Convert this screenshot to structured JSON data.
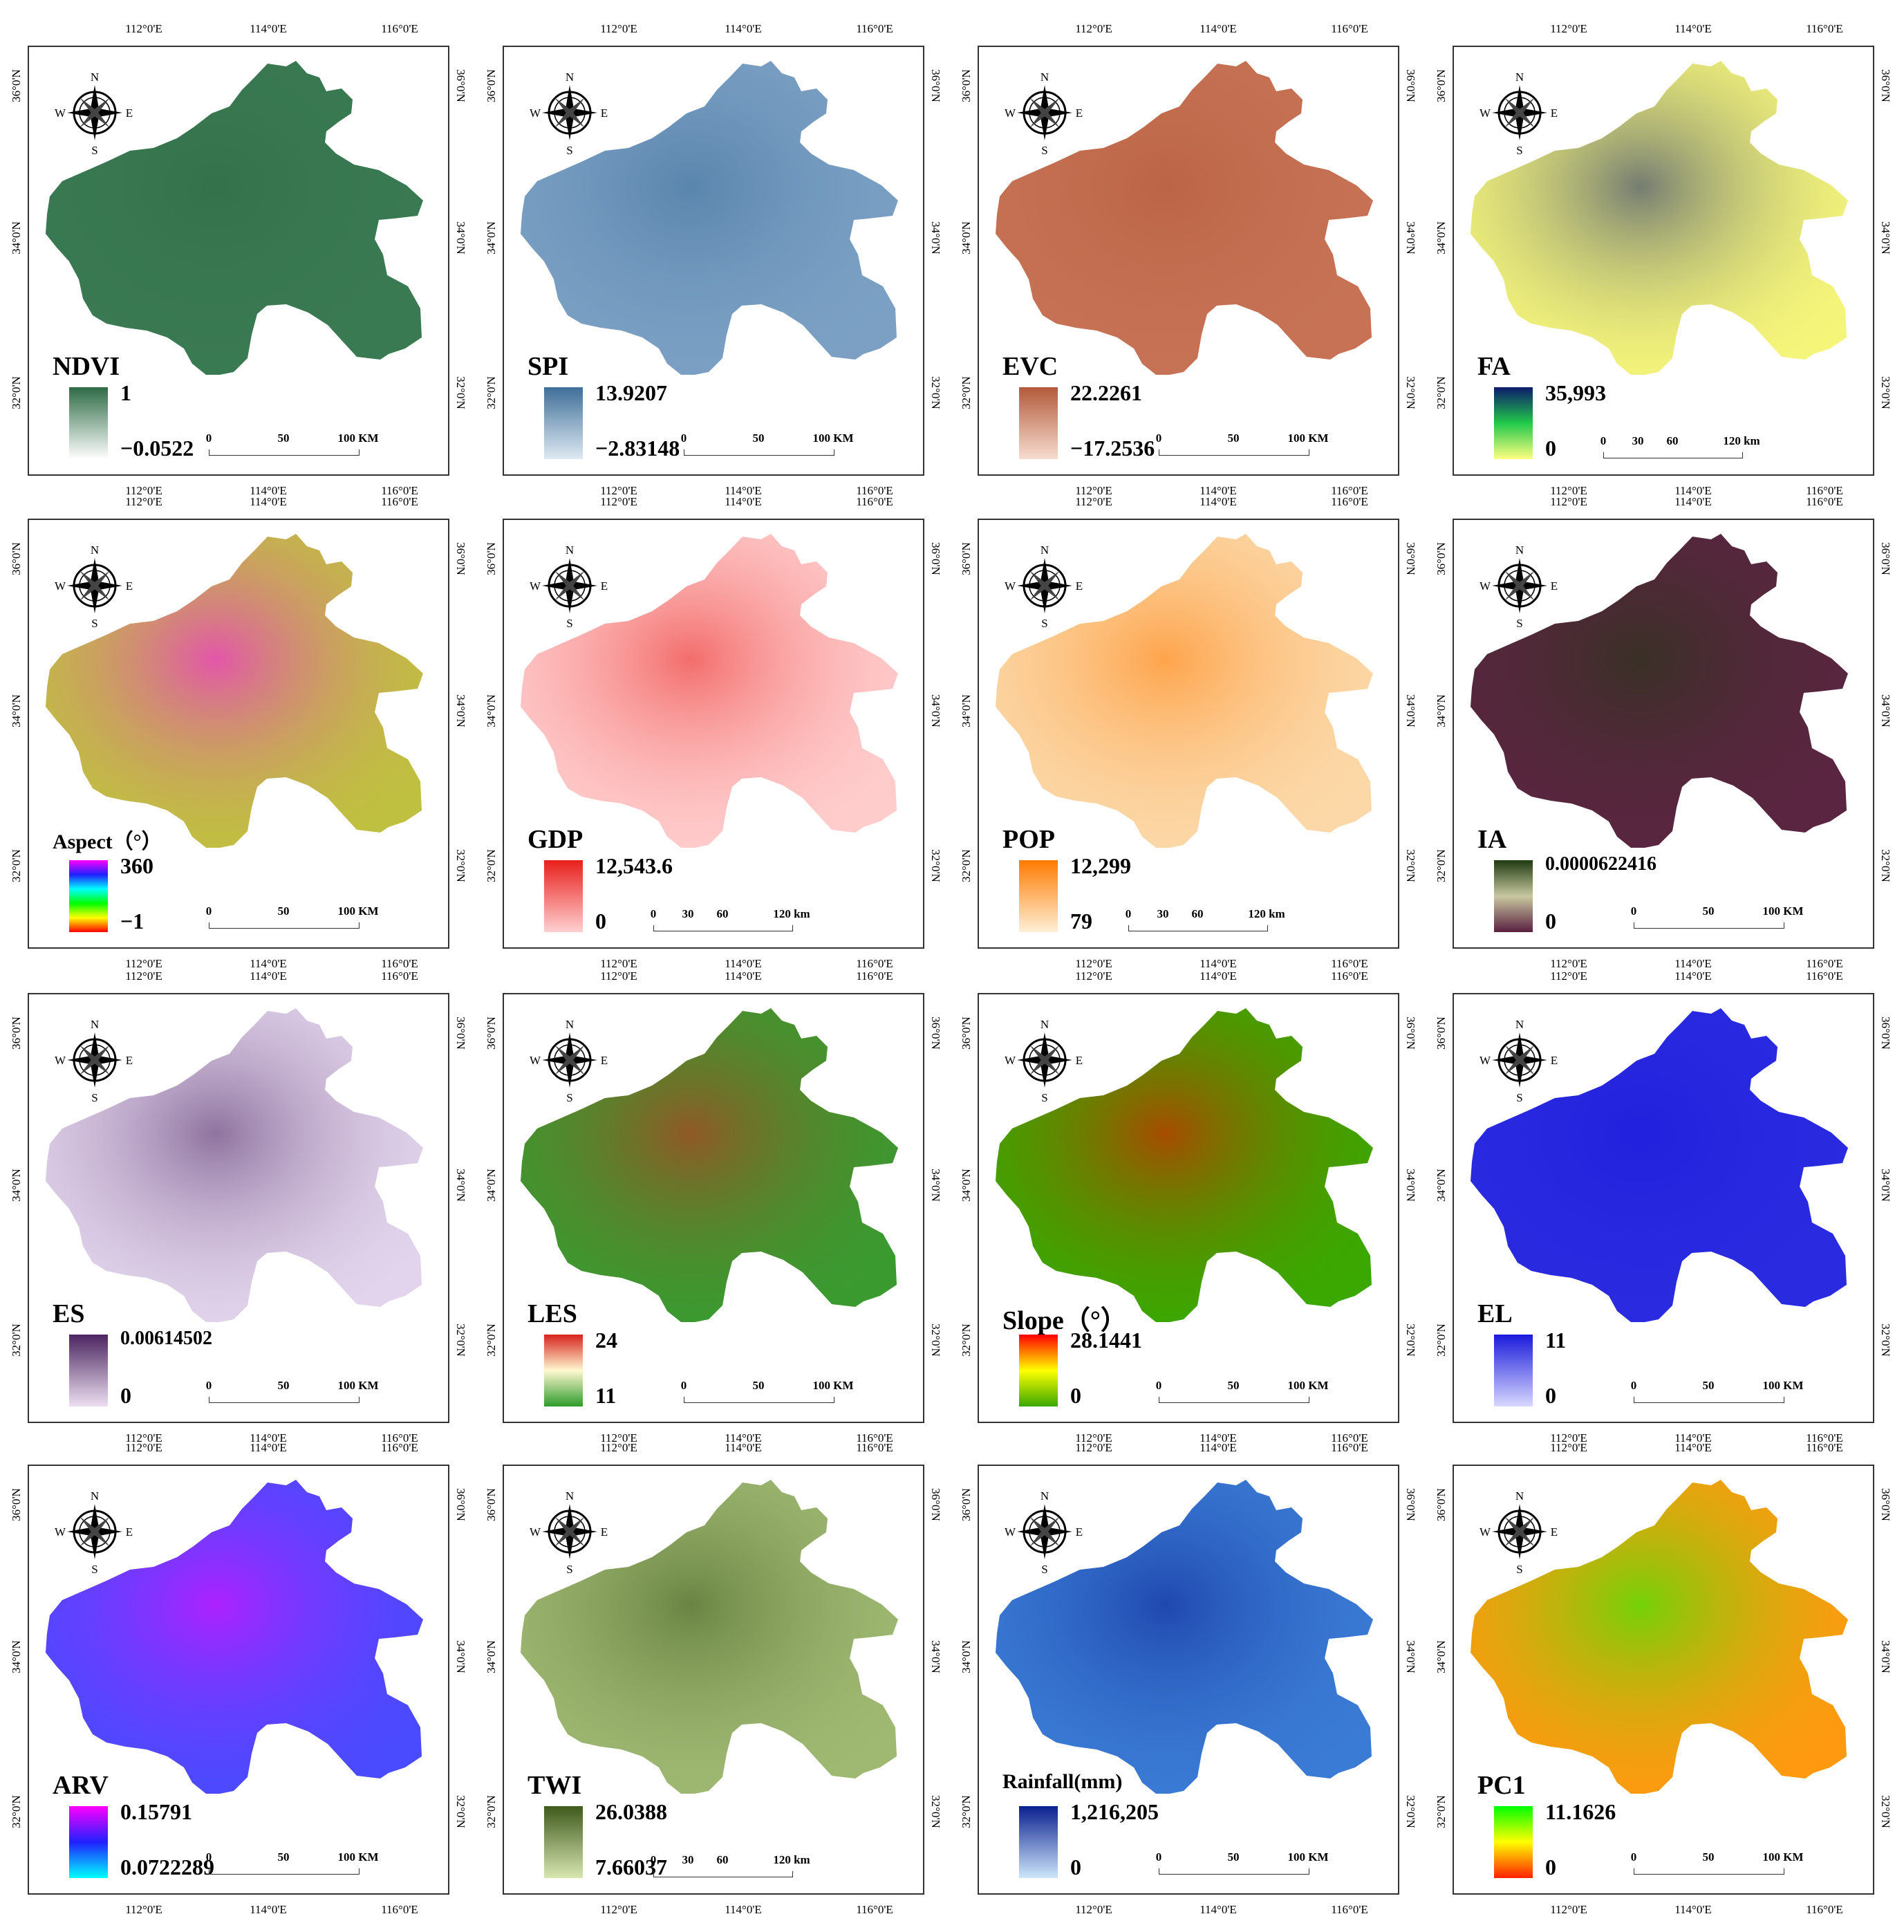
{
  "coords": {
    "lon": [
      "112°0'E",
      "114°0'E",
      "116°0'E"
    ],
    "lat": [
      "36°0'N",
      "34°0'N",
      "32°0'N"
    ]
  },
  "compass": {
    "n": "N",
    "s": "S",
    "e": "E",
    "w": "W"
  },
  "panels": [
    {
      "title": "NDVI",
      "max": "1",
      "min": "−0.0522",
      "scale": [
        "0",
        "50",
        "100 KM"
      ],
      "ramp": [
        "#2e6b45",
        "#ffffff"
      ],
      "fill": "#3a7a52"
    },
    {
      "title": "SPI",
      "max": "13.9207",
      "min": "−2.83148",
      "scale": [
        "0",
        "50",
        "100 KM"
      ],
      "ramp": [
        "#3f6f99",
        "#dfeaf3"
      ],
      "fill": "#7ba0c4"
    },
    {
      "title": "EVC",
      "max": "22.2261",
      "min": "−17.2536",
      "scale": [
        "0",
        "50",
        "100 KM"
      ],
      "ramp": [
        "#b35a3a",
        "#f6dcd0"
      ],
      "fill": "#c77255"
    },
    {
      "title": "FA",
      "max": "35,993",
      "min": "0",
      "scale": [
        "0",
        "30",
        "60",
        "120 km"
      ],
      "ramp": [
        "#0b1a6b",
        "#22c94a",
        "#ffff80"
      ],
      "fill": "#f5f57a"
    },
    {
      "title": "Aspect（°）",
      "max": "360",
      "min": "−1",
      "scale": [
        "0",
        "50",
        "100 KM"
      ],
      "ramp": [
        "#ff00ff",
        "#2020ff",
        "#00ffff",
        "#00ff00",
        "#ffff00",
        "#ff0000"
      ],
      "fill": "#c0c040"
    },
    {
      "title": "GDP",
      "max": "12,543.6",
      "min": "0",
      "scale": [
        "0",
        "30",
        "60",
        "120 km"
      ],
      "ramp": [
        "#e8201c",
        "#ffd0d0"
      ],
      "fill": "#ffcccc"
    },
    {
      "title": "POP",
      "max": "12,299",
      "min": "79",
      "scale": [
        "0",
        "30",
        "60",
        "120 km"
      ],
      "ramp": [
        "#ff7a00",
        "#fff0d8"
      ],
      "fill": "#fcd8a8"
    },
    {
      "title": "IA",
      "max": "0.0000622416",
      "min": "0",
      "scale": [
        "0",
        "50",
        "100 KM"
      ],
      "ramp": [
        "#1e3a10",
        "#c8c8a0",
        "#5a2040"
      ],
      "fill": "#5a2540"
    },
    {
      "title": "ES",
      "max": "0.00614502",
      "min": "0",
      "scale": [
        "0",
        "50",
        "100 KM"
      ],
      "ramp": [
        "#4b2560",
        "#ecdff0"
      ],
      "fill": "#e2d4ec"
    },
    {
      "title": "LES",
      "max": "24",
      "min": "11",
      "scale": [
        "0",
        "50",
        "100 KM"
      ],
      "ramp": [
        "#d7231d",
        "#fff8d0",
        "#2e9a2a"
      ],
      "fill": "#3a9a30"
    },
    {
      "title": "Slope（°）",
      "max": "28.1441",
      "min": "0",
      "scale": [
        "0",
        "50",
        "100 KM"
      ],
      "ramp": [
        "#ff0000",
        "#ffff00",
        "#3aa800"
      ],
      "fill": "#3aa800"
    },
    {
      "title": "EL",
      "max": "11",
      "min": "0",
      "scale": [
        "0",
        "50",
        "100 KM"
      ],
      "ramp": [
        "#1a1adc",
        "#d8d8ff"
      ],
      "fill": "#2a2ae0"
    },
    {
      "title": "ARV",
      "max": "0.15791",
      "min": "0.0722289",
      "scale": [
        "0",
        "50",
        "100 KM"
      ],
      "ramp": [
        "#ff00ff",
        "#2020ff",
        "#00ffff"
      ],
      "fill": "#4a4aff"
    },
    {
      "title": "TWI",
      "max": "26.0388",
      "min": "7.66037",
      "scale": [
        "0",
        "30",
        "60",
        "120 km"
      ],
      "ramp": [
        "#3e5a1c",
        "#d8e6b0"
      ],
      "fill": "#9fb872"
    },
    {
      "title": "Rainfall(mm)",
      "max": "1,216,205",
      "min": "0",
      "scale": [
        "0",
        "50",
        "100 KM"
      ],
      "ramp": [
        "#0a1f8f",
        "#cde6fa"
      ],
      "fill": "#3a7bd5"
    },
    {
      "title": "PC1",
      "max": "11.1626",
      "min": "0",
      "scale": [
        "0",
        "50",
        "100 KM"
      ],
      "ramp": [
        "#00ff00",
        "#ffff00",
        "#ff2000"
      ],
      "fill": "#ff9a10"
    }
  ]
}
